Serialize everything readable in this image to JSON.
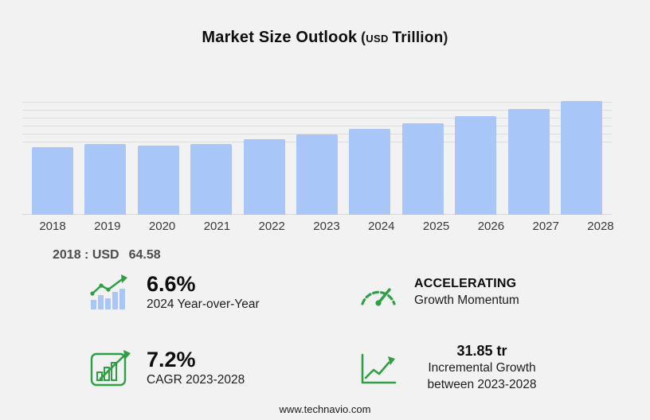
{
  "title": {
    "main": "Market Size Outlook",
    "paren_open": "(",
    "currency": "USD",
    "unit": "Trillion",
    "paren_close": ")"
  },
  "chart_data": {
    "type": "bar",
    "title": "Market Size Outlook (USD Trillion)",
    "categories": [
      "2018",
      "2019",
      "2020",
      "2021",
      "2022",
      "2023",
      "2024",
      "2025",
      "2026",
      "2027",
      "2028"
    ],
    "values": [
      64.58,
      67.3,
      65.6,
      67.1,
      71.6,
      76.62,
      81.68,
      87.3,
      93.5,
      100.6,
      108.47
    ],
    "xlabel": "",
    "ylabel": "",
    "ylim": [
      0,
      112
    ],
    "grid": true,
    "legend": false,
    "bar_color": "#a9c6f8",
    "annotation": "2018 : USD 64.58"
  },
  "annotation": {
    "prefix": "2018 : USD",
    "value": "64.58"
  },
  "stats": [
    {
      "icon": "yoy-growth-icon",
      "value": "6.6%",
      "label": "2024 Year-over-Year"
    },
    {
      "icon": "speedometer-icon",
      "value": "ACCELERATING",
      "label": "Growth Momentum"
    },
    {
      "icon": "cagr-icon",
      "value": "7.2%",
      "label": "CAGR 2023-2028"
    },
    {
      "icon": "incremental-growth-icon",
      "value": "31.85 tr",
      "label": "Incremental Growth between 2023-2028"
    }
  ],
  "footer": {
    "url": "www.technavio.com"
  },
  "colors": {
    "accent_green": "#2da043",
    "bar_blue": "#a9c6f8",
    "background": "#f2f2f2",
    "gridline": "#dcdcdc"
  }
}
